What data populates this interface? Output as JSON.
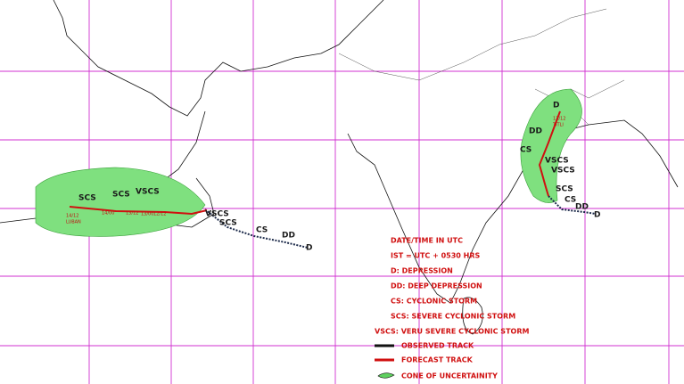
{
  "legend": {
    "items": [
      "DATE/TIME IN UTC",
      "IST = UTC + 0530 HRS",
      "D: DEPRESSION",
      "DD: DEEP DEPRESSION",
      "CS: CYCLONIC STORM",
      "SCS: SEVERE CYCLONIC STORM",
      "VSCS: VERU SEVERE CYCLONIC STORM"
    ],
    "observed": "OBSERVED TRACK",
    "forecast": "FORECAST TRACK",
    "cone": "CONE OF UNCERTAINITY"
  },
  "storms": [
    {
      "name": "LUBAN",
      "intensity": [
        "SCS",
        "SCS",
        "VSCS",
        "VSCS",
        "SCS",
        "CS",
        "DD",
        "D"
      ],
      "times": [
        "14/12",
        "14/00",
        "13/12",
        "13/00",
        "12/12"
      ]
    },
    {
      "name": "TITLI",
      "intensity": [
        "D",
        "DD",
        "CS",
        "VSCS",
        "VSCS",
        "SCS",
        "CS",
        "DD",
        "D"
      ],
      "times": [
        "12/12"
      ]
    }
  ]
}
